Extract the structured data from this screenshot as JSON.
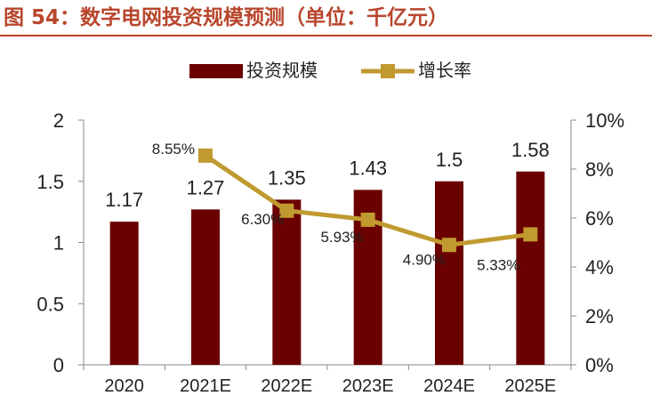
{
  "title": "图 54：数字电网投资规模预测（单位：千亿元）",
  "colors": {
    "title": "#b8462d",
    "bar": "#6b0000",
    "line": "#c09a30"
  },
  "chart_data": {
    "type": "bar",
    "categories": [
      "2020",
      "2021E",
      "2022E",
      "2023E",
      "2024E",
      "2025E"
    ],
    "series": [
      {
        "name": "投资规模",
        "type": "bar",
        "axis": "left",
        "values": [
          1.17,
          1.27,
          1.35,
          1.43,
          1.5,
          1.58
        ],
        "labels": [
          "1.17",
          "1.27",
          "1.35",
          "1.43",
          "1.5",
          "1.58"
        ]
      },
      {
        "name": "增长率",
        "type": "line",
        "axis": "right",
        "values": [
          null,
          8.55,
          6.3,
          5.93,
          4.9,
          5.33
        ],
        "labels": [
          "",
          "8.55%",
          "6.30%",
          "5.93%",
          "4.90%",
          "5.33%"
        ]
      }
    ],
    "y_left": {
      "range": [
        0,
        2
      ],
      "ticks": [
        "0",
        "0.5",
        "1",
        "1.5",
        "2"
      ]
    },
    "y_right": {
      "range": [
        0,
        10
      ],
      "ticks": [
        "0%",
        "2%",
        "4%",
        "6%",
        "8%",
        "10%"
      ]
    },
    "legend_position": "top",
    "grid": false
  }
}
